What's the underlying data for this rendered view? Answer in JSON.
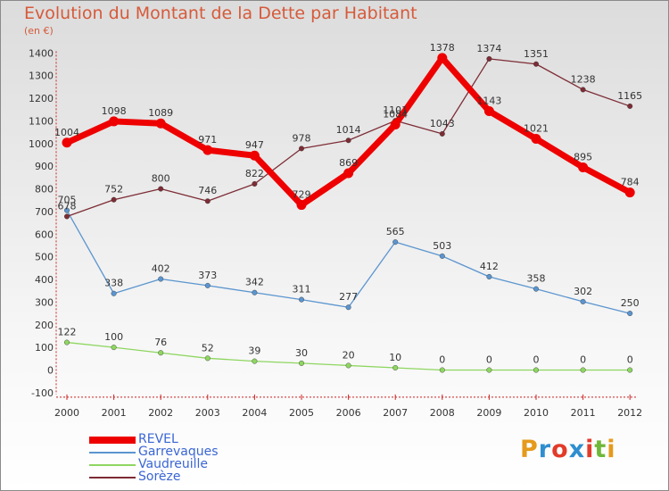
{
  "title": "Evolution du Montant de la Dette par Habitant",
  "subtitle": "(en €)",
  "logo_text": "Proxiti",
  "colors": {
    "title": "#d65a3a",
    "legend_text": "#3a66d4"
  },
  "chart_data": {
    "type": "line",
    "x": [
      2000,
      2001,
      2002,
      2003,
      2004,
      2005,
      2006,
      2007,
      2008,
      2009,
      2010,
      2011,
      2012
    ],
    "ylim": [
      -100,
      1400
    ],
    "yticks": [
      -100,
      0,
      100,
      200,
      300,
      400,
      500,
      600,
      700,
      800,
      900,
      1000,
      1100,
      1200,
      1300,
      1400
    ],
    "grid": false,
    "legend": "bottom-left",
    "series": [
      {
        "name": "REVEL",
        "color": "#ee0000",
        "values": [
          1004,
          1098,
          1089,
          971,
          947,
          729,
          869,
          1084,
          1378,
          1143,
          1021,
          895,
          784
        ]
      },
      {
        "name": "Garrevaques",
        "color": "#5b95cf",
        "values": [
          705,
          338,
          402,
          373,
          342,
          311,
          277,
          565,
          503,
          412,
          358,
          302,
          250
        ]
      },
      {
        "name": "Vaudreuille",
        "color": "#8ed660",
        "values": [
          122,
          100,
          76,
          52,
          39,
          30,
          20,
          10,
          0,
          0,
          0,
          0,
          0
        ]
      },
      {
        "name": "Sorèze",
        "color": "#7d2c35",
        "values": [
          678,
          752,
          800,
          746,
          822,
          978,
          1014,
          1101,
          1043,
          1374,
          1351,
          1238,
          1165
        ]
      }
    ]
  }
}
